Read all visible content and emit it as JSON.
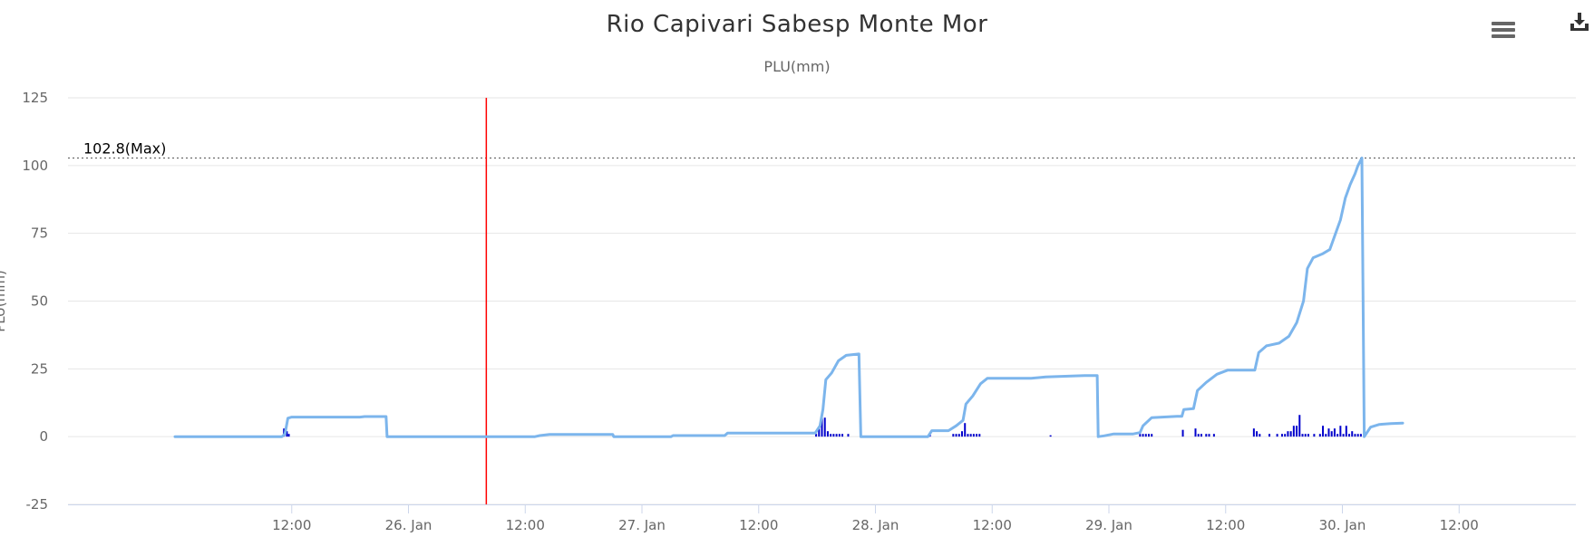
{
  "title": "Rio Capivari Sabesp Monte Mor",
  "subtitle": "PLU(mm)",
  "toolbar": {
    "menu_icon": "hamburger-menu-icon",
    "download_icon": "download-icon"
  },
  "colors": {
    "line": "#7cb5ec",
    "bars": "#0000cc",
    "marker_line": "#ff0000",
    "grid": "#e6e6e6",
    "max_line": "#555555"
  },
  "chart_data": {
    "type": "line",
    "title": "Rio Capivari Sabesp Monte Mor",
    "subtitle": "PLU(mm)",
    "ylabel": "PLU(mm)",
    "xlabel": "",
    "ylim": [
      -25,
      125
    ],
    "xlim": [
      -11,
      120
    ],
    "x_unit_note": "",
    "yticks": [
      -25,
      0,
      25,
      50,
      75,
      100,
      125
    ],
    "xticks": [
      {
        "x": 12,
        "label": "12:00"
      },
      {
        "x": 24,
        "label": "26. Jan"
      },
      {
        "x": 36,
        "label": "12:00"
      },
      {
        "x": 48,
        "label": "27. Jan"
      },
      {
        "x": 60,
        "label": "12:00"
      },
      {
        "x": 72,
        "label": "28. Jan"
      },
      {
        "x": 84,
        "label": "12:00"
      },
      {
        "x": 96,
        "label": "29. Jan"
      },
      {
        "x": 108,
        "label": "12:00"
      },
      {
        "x": 120,
        "label": "30. Jan"
      },
      {
        "x": 132,
        "label": "12:00"
      }
    ],
    "max_line": {
      "value": 102.8,
      "label": "102.8(Max)"
    },
    "marker_x": 32,
    "grid": true,
    "legend": "none",
    "series": [
      {
        "type": "line",
        "points": [
          [
            0,
            0
          ],
          [
            11,
            0
          ],
          [
            11.3,
            1
          ],
          [
            11.6,
            6.8
          ],
          [
            12,
            7.2
          ],
          [
            19,
            7.2
          ],
          [
            19.5,
            7.4
          ],
          [
            21.7,
            7.4
          ],
          [
            21.8,
            0
          ],
          [
            37,
            0
          ],
          [
            37.5,
            0.4
          ],
          [
            38.5,
            0.8
          ],
          [
            45,
            0.8
          ],
          [
            45.1,
            0
          ],
          [
            51,
            0
          ],
          [
            51.2,
            0.4
          ],
          [
            56.5,
            0.4
          ],
          [
            56.8,
            1.3
          ],
          [
            65.8,
            1.3
          ],
          [
            66.3,
            4
          ],
          [
            66.6,
            10
          ],
          [
            66.9,
            21
          ],
          [
            67.5,
            23.5
          ],
          [
            68.2,
            28
          ],
          [
            69,
            30
          ],
          [
            70.3,
            30.5
          ],
          [
            70.5,
            0
          ],
          [
            77.4,
            0
          ],
          [
            77.8,
            2.2
          ],
          [
            79.5,
            2.2
          ],
          [
            80.3,
            4
          ],
          [
            81,
            6
          ],
          [
            81.3,
            12
          ],
          [
            82,
            15
          ],
          [
            82.8,
            19.5
          ],
          [
            83.5,
            21.5
          ],
          [
            88,
            21.5
          ],
          [
            89.5,
            22
          ],
          [
            93.5,
            22.5
          ],
          [
            94.8,
            22.5
          ],
          [
            94.9,
            0
          ],
          [
            95.5,
            0.3
          ],
          [
            96.5,
            1
          ],
          [
            98.5,
            1
          ],
          [
            99.2,
            1.5
          ],
          [
            99.5,
            4
          ],
          [
            100.4,
            7
          ],
          [
            103,
            7.5
          ],
          [
            103.5,
            7.5
          ],
          [
            103.7,
            10
          ],
          [
            104.7,
            10.3
          ],
          [
            105.1,
            17
          ],
          [
            106,
            20
          ],
          [
            107.1,
            23
          ],
          [
            108.2,
            24.5
          ],
          [
            111,
            24.5
          ],
          [
            111.4,
            31
          ],
          [
            112.2,
            33.5
          ],
          [
            113.5,
            34.5
          ],
          [
            114.5,
            37
          ],
          [
            115.3,
            42
          ],
          [
            116,
            50
          ],
          [
            116.4,
            62
          ],
          [
            117,
            66
          ],
          [
            118,
            67.5
          ],
          [
            118.7,
            69
          ],
          [
            119.3,
            75
          ],
          [
            119.8,
            80
          ],
          [
            120.3,
            88
          ],
          [
            120.8,
            93
          ],
          [
            121.3,
            97
          ],
          [
            121.6,
            100
          ],
          [
            122,
            102.8
          ],
          [
            122.25,
            0
          ],
          [
            122.9,
            3.5
          ],
          [
            123.8,
            4.5
          ],
          [
            125,
            4.8
          ],
          [
            126.2,
            5
          ]
        ]
      },
      {
        "type": "bar",
        "points": [
          [
            11.2,
            3
          ],
          [
            11.5,
            2
          ],
          [
            11.7,
            1
          ],
          [
            65.9,
            1
          ],
          [
            66.2,
            3
          ],
          [
            66.5,
            7
          ],
          [
            66.8,
            7
          ],
          [
            67.1,
            2
          ],
          [
            67.4,
            1
          ],
          [
            67.7,
            1
          ],
          [
            68.0,
            1
          ],
          [
            68.3,
            1
          ],
          [
            68.6,
            1
          ],
          [
            69.2,
            1
          ],
          [
            77.6,
            1
          ],
          [
            80.0,
            1
          ],
          [
            80.3,
            1
          ],
          [
            80.6,
            1
          ],
          [
            80.9,
            2
          ],
          [
            81.2,
            5
          ],
          [
            81.5,
            1
          ],
          [
            81.8,
            1
          ],
          [
            82.1,
            1
          ],
          [
            82.4,
            1
          ],
          [
            82.7,
            1
          ],
          [
            90.0,
            0.5
          ],
          [
            99.2,
            1
          ],
          [
            99.5,
            1
          ],
          [
            99.8,
            1
          ],
          [
            100.1,
            1
          ],
          [
            100.4,
            1
          ],
          [
            103.6,
            2.5
          ],
          [
            104.9,
            3
          ],
          [
            105.2,
            1
          ],
          [
            105.5,
            1
          ],
          [
            106.0,
            1
          ],
          [
            106.3,
            1
          ],
          [
            106.8,
            1
          ],
          [
            110.9,
            3
          ],
          [
            111.2,
            2
          ],
          [
            111.5,
            1
          ],
          [
            112.5,
            1
          ],
          [
            113.3,
            1
          ],
          [
            113.8,
            1
          ],
          [
            114.1,
            1
          ],
          [
            114.4,
            2
          ],
          [
            114.7,
            2
          ],
          [
            115.0,
            4
          ],
          [
            115.3,
            4
          ],
          [
            115.6,
            8
          ],
          [
            115.9,
            1
          ],
          [
            116.2,
            1
          ],
          [
            116.5,
            1
          ],
          [
            117.1,
            1
          ],
          [
            117.7,
            1
          ],
          [
            118.0,
            4
          ],
          [
            118.3,
            1
          ],
          [
            118.6,
            3
          ],
          [
            118.9,
            2
          ],
          [
            119.2,
            3
          ],
          [
            119.5,
            1
          ],
          [
            119.8,
            4
          ],
          [
            120.1,
            1
          ],
          [
            120.4,
            4
          ],
          [
            120.7,
            1
          ],
          [
            121.0,
            2
          ],
          [
            121.3,
            1
          ],
          [
            121.6,
            1
          ],
          [
            121.9,
            1
          ]
        ]
      }
    ]
  }
}
